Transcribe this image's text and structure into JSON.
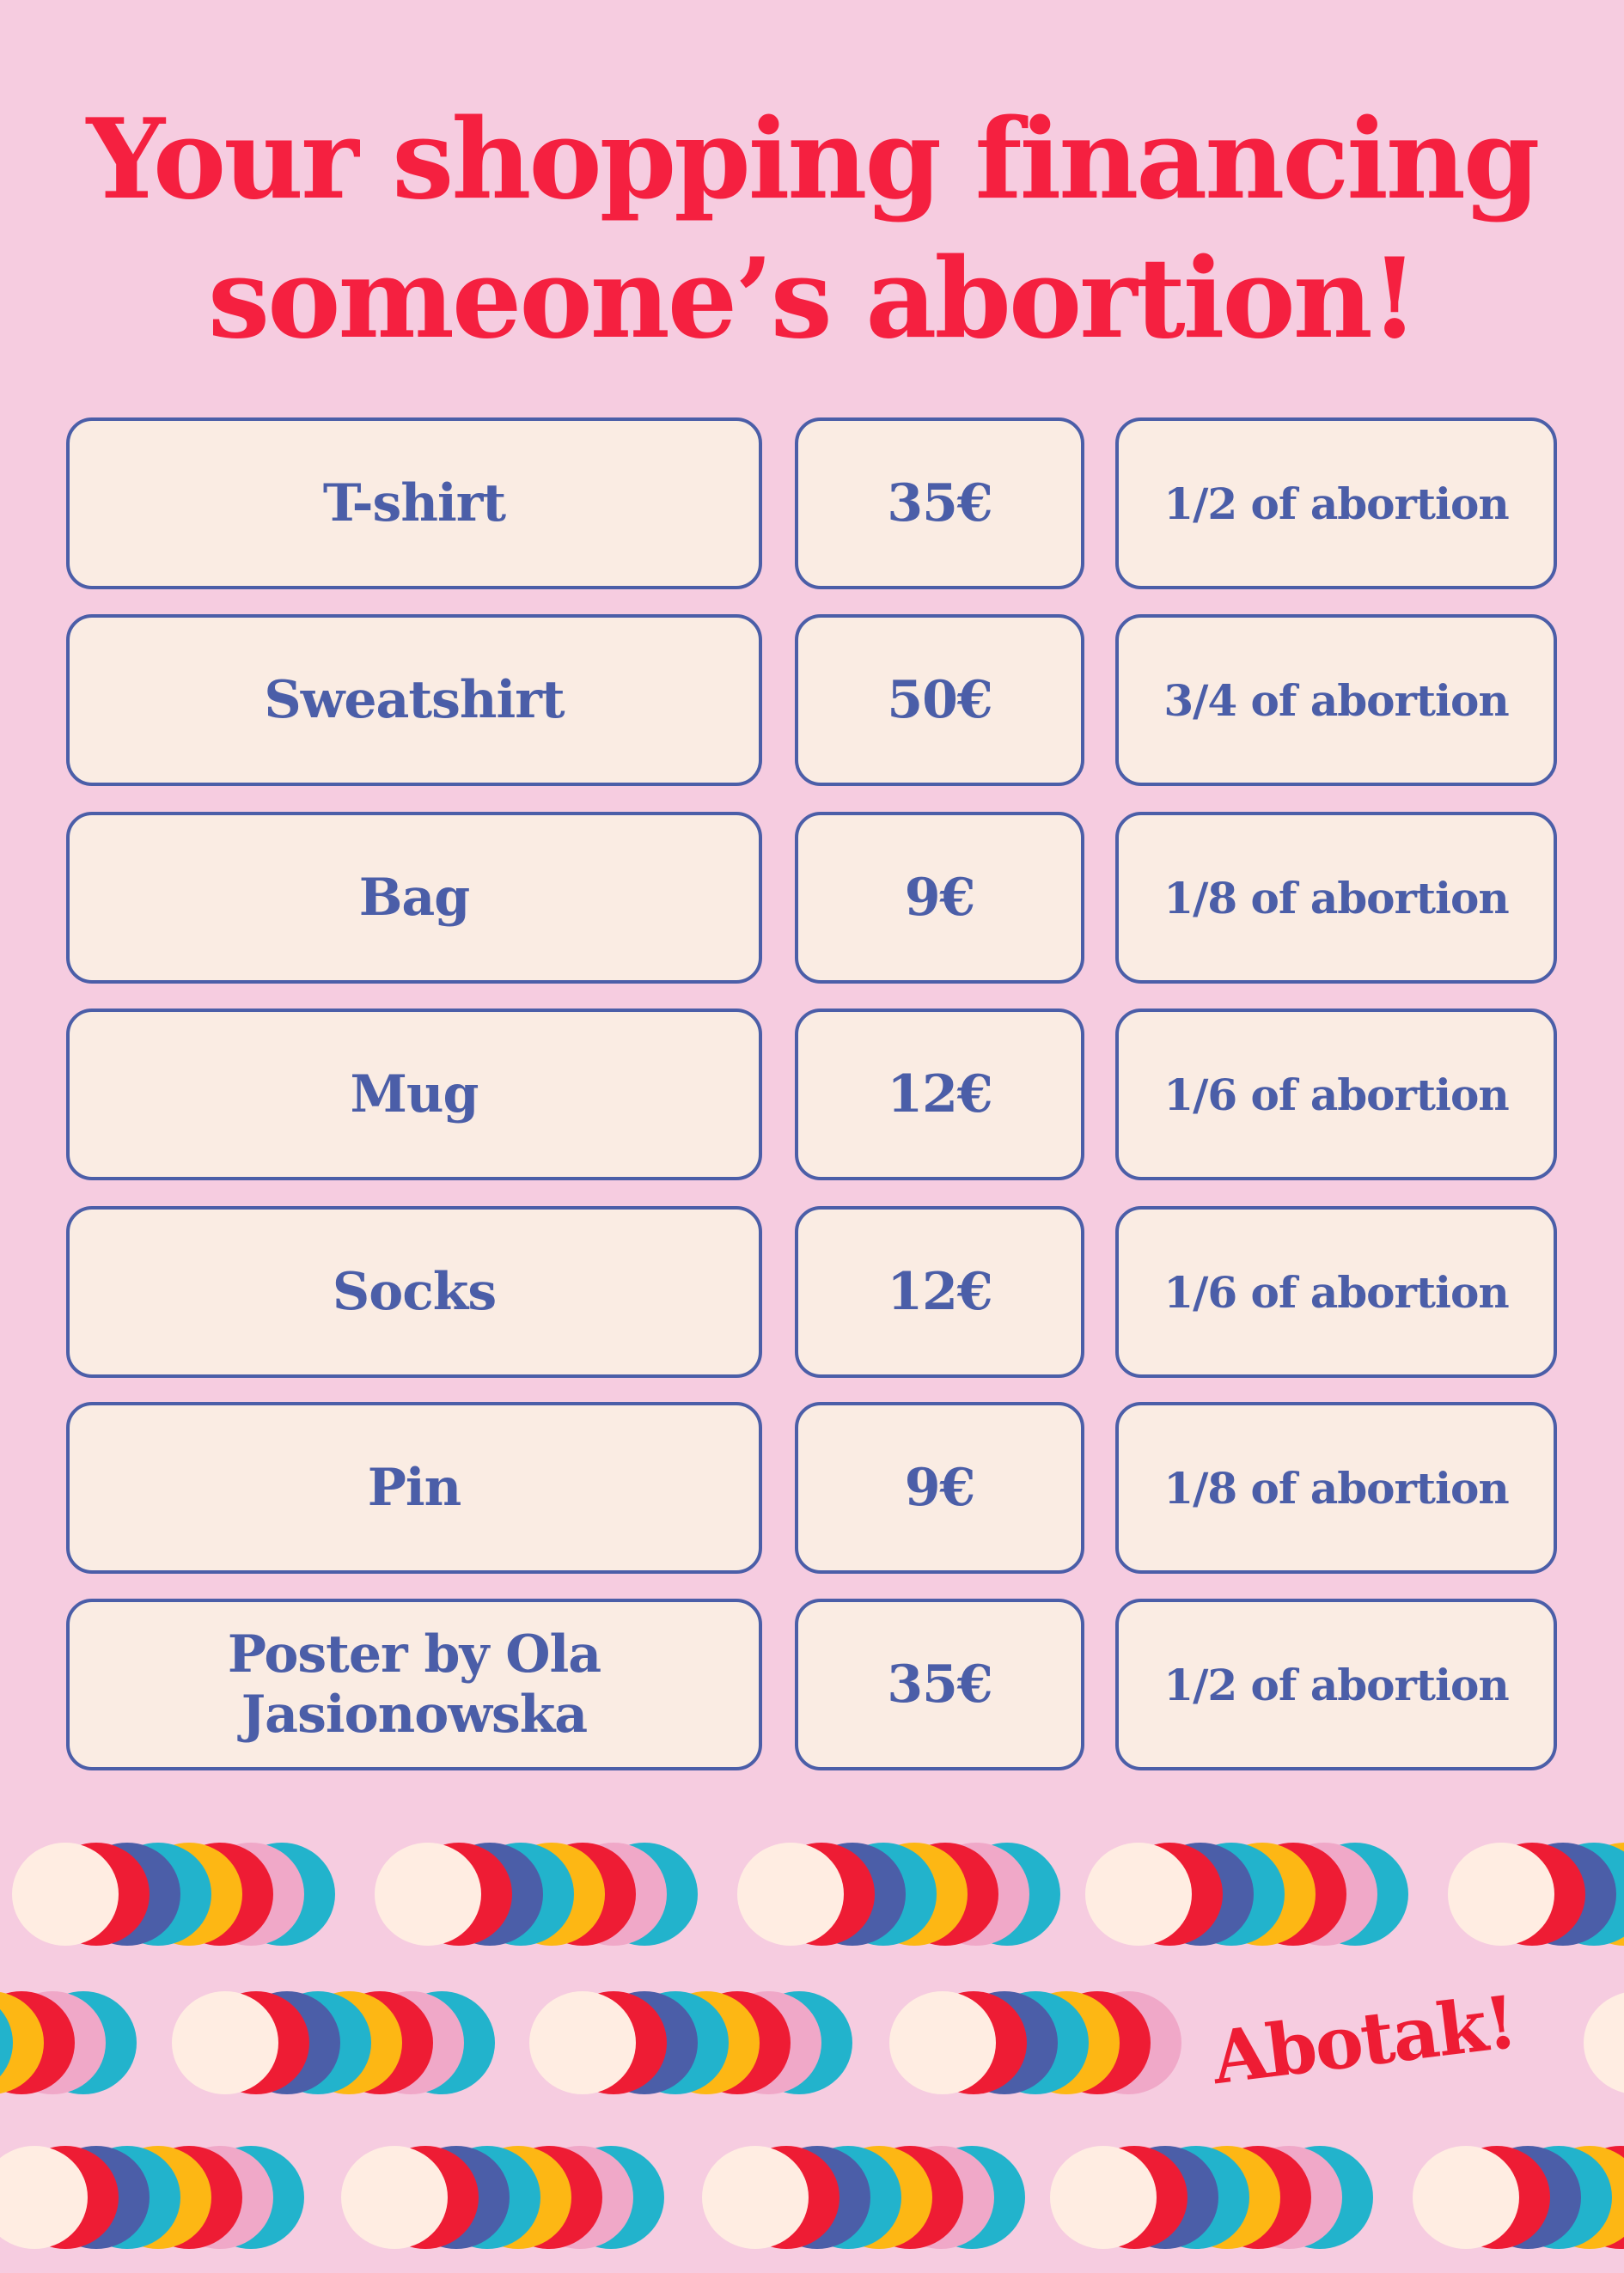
{
  "title": {
    "line1": "Your shopping financing",
    "line2": "someone’s abortion!"
  },
  "items": [
    {
      "name": "T-shirt",
      "price": "35€",
      "share": "1/2 of abortion"
    },
    {
      "name": "Sweatshirt",
      "price": "50€",
      "share": "3/4 of abortion"
    },
    {
      "name": "Bag",
      "price": "9€",
      "share": "1/8 of abortion"
    },
    {
      "name": "Mug",
      "price": "12€",
      "share": "1/6 of abortion"
    },
    {
      "name": "Socks",
      "price": "12€",
      "share": "1/6 of abortion"
    },
    {
      "name": "Pin",
      "price": "9€",
      "share": "1/8 of abortion"
    },
    {
      "name": "Poster by Ola Jasionowska",
      "price": "35€",
      "share": "1/2 of abortion"
    }
  ],
  "brand": "Abotak!",
  "colors": {
    "background": "#f6cce0",
    "title": "#f52040",
    "box_fill": "#faece3",
    "box_border_and_text": "#4b5ea8",
    "circle_stack": [
      "#ffede2",
      "#ee1c34",
      "#4b5ea8",
      "#22b3cc",
      "#fdb714",
      "#ee1c34",
      "#f0a8c8",
      "#22b3cc"
    ]
  }
}
